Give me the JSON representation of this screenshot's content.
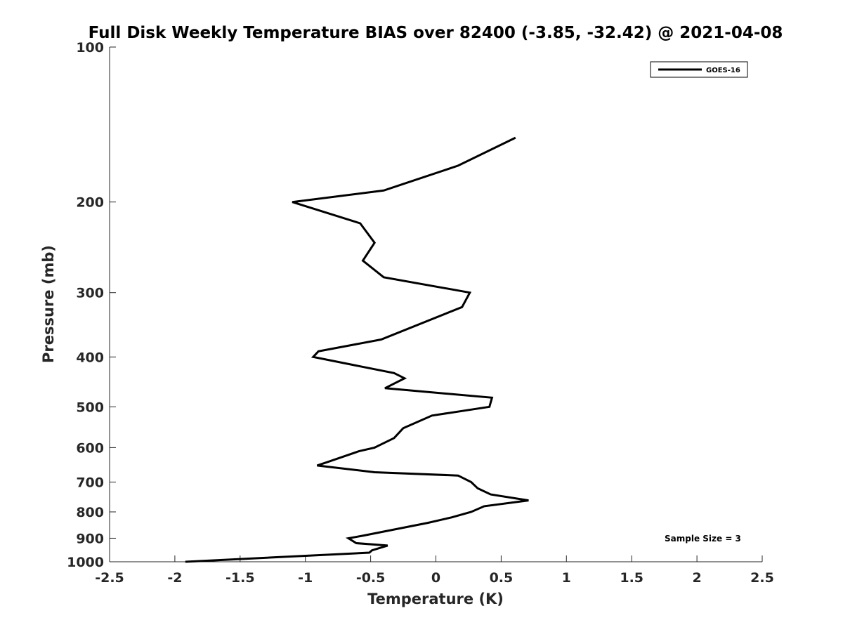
{
  "chart_data": {
    "type": "line",
    "title": "Full Disk Weekly Temperature BIAS over 82400 (-3.85, -32.42) @ 2021-04-08",
    "xlabel": "Temperature (K)",
    "ylabel": "Pressure (mb)",
    "xlim": [
      -2.5,
      2.5
    ],
    "ylim": [
      100,
      1000
    ],
    "y_scale": "log",
    "y_reversed": true,
    "x_ticks": [
      -2.5,
      -2,
      -1.5,
      -1,
      -0.5,
      0,
      0.5,
      1,
      1.5,
      2,
      2.5
    ],
    "x_tick_labels": [
      "-2.5",
      "-2",
      "-1.5",
      "-1",
      "-0.5",
      "0",
      "0.5",
      "1",
      "1.5",
      "2",
      "2.5"
    ],
    "y_ticks": [
      100,
      200,
      300,
      400,
      500,
      600,
      700,
      800,
      900,
      1000
    ],
    "y_tick_labels": [
      "100",
      "200",
      "300",
      "400",
      "500",
      "600",
      "700",
      "800",
      "900",
      "1000"
    ],
    "grid": false,
    "legend_position": "top-right",
    "line_color": "#000000",
    "series": [
      {
        "name": "GOES-16",
        "x": [
          0.61,
          0.17,
          -0.4,
          -1.1,
          -0.58,
          -0.47,
          -0.56,
          -0.4,
          0.26,
          0.2,
          -0.42,
          -0.9,
          -0.94,
          -0.32,
          -0.24,
          -0.39,
          0.43,
          0.41,
          -0.03,
          -0.25,
          -0.32,
          -0.47,
          -0.59,
          -0.83,
          -0.91,
          -0.47,
          0.17,
          0.27,
          0.32,
          0.42,
          0.71,
          0.37,
          0.27,
          0.12,
          -0.06,
          -0.56,
          -0.67,
          -0.61,
          -0.37,
          -0.49,
          -0.51,
          -1.92
        ],
        "y": [
          150,
          170,
          190,
          200,
          220,
          240,
          260,
          280,
          300,
          320,
          370,
          390,
          400,
          430,
          440,
          460,
          480,
          500,
          520,
          550,
          575,
          600,
          610,
          640,
          650,
          670,
          680,
          700,
          720,
          740,
          760,
          780,
          800,
          820,
          840,
          890,
          900,
          920,
          930,
          950,
          960,
          1000
        ]
      }
    ],
    "annotations": [
      "Sample Size = 3"
    ]
  }
}
